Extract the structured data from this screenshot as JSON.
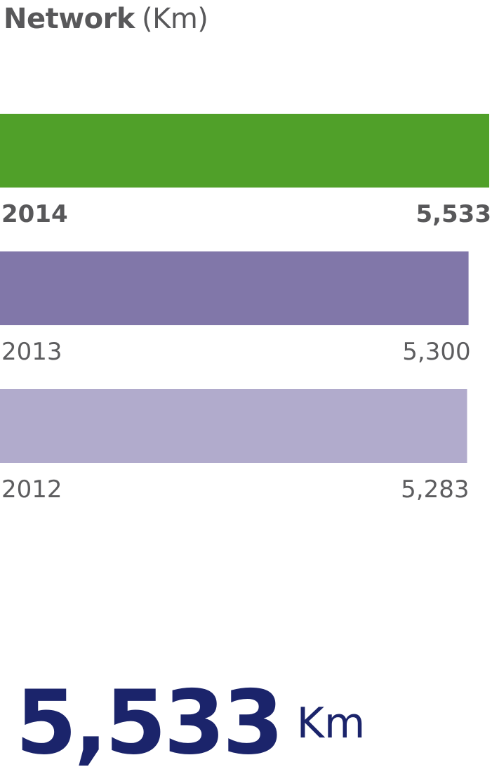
{
  "title": {
    "bold": "Network",
    "unit": "(Km)"
  },
  "chart_data": {
    "type": "bar",
    "orientation": "horizontal",
    "categories": [
      "2014",
      "2013",
      "2012"
    ],
    "values": [
      5533,
      5300,
      5283
    ],
    "value_labels": [
      "5,533",
      "5,300",
      "5,283"
    ],
    "colors": [
      "#50a029",
      "#8177a9",
      "#b1abcc"
    ],
    "highlight": "2014",
    "xlim": [
      0,
      5533
    ]
  },
  "headline": {
    "value": "5,533",
    "unit": "Km"
  }
}
